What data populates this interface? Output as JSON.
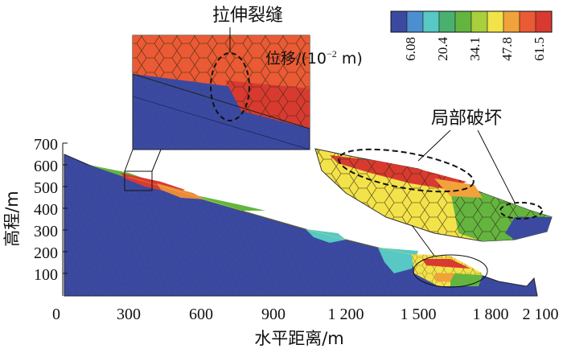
{
  "chart_data": {
    "type": "other",
    "description_kind": "slope displacement contour",
    "xlabel": "水平距离/m",
    "ylabel": "高程/m",
    "x_ticks": [
      "0",
      "300",
      "600",
      "900",
      "1 200",
      "1 500",
      "1 800",
      "2 100"
    ],
    "y_ticks": [
      "100",
      "200",
      "300",
      "400",
      "500",
      "600",
      "700"
    ],
    "xlim": [
      0,
      2100
    ],
    "ylim": [
      0,
      700
    ],
    "colorbar": {
      "title": "位移/(10",
      "title_exp": "−2",
      "title_suffix": " m)",
      "labels": [
        "6.08",
        "20.4",
        "34.1",
        "47.8",
        "61.5"
      ],
      "colors": [
        "#3b4aa0",
        "#4c8fd0",
        "#57c8c4",
        "#4ab06e",
        "#63b53f",
        "#a8cf3c",
        "#f3e34a",
        "#f2a23a",
        "#ea5a34",
        "#d93a30"
      ]
    },
    "annotations": {
      "tension_crack": "拉伸裂缝",
      "local_failure": "局部破坏"
    }
  }
}
